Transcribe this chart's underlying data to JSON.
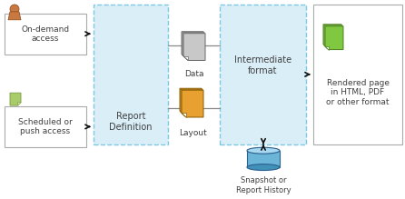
{
  "bg_color": "#ffffff",
  "box1_label": "On-demand\naccess",
  "box2_label": "Scheduled or\npush access",
  "report_def_label": "Report\nDefinition",
  "data_label": "Data",
  "layout_label": "Layout",
  "intermediate_label": "Intermediate\nformat",
  "rendered_label": "Rendered page\nin HTML, PDF\nor other format",
  "snapshot_label": "Snapshot or\nReport History",
  "light_blue": "#daeef8",
  "dashed_blue": "#7ec8e3",
  "box_border": "#aaaaaa",
  "text_color": "#404040",
  "arrow_color": "#111111",
  "line_color": "#888888"
}
